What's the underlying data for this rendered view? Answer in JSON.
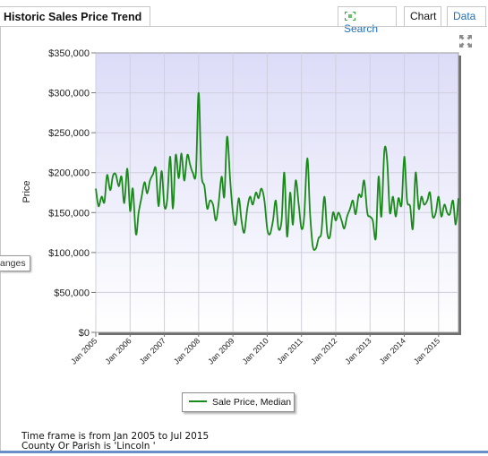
{
  "tabs": {
    "title": "Historic Sales Price Trend",
    "search_label": "Search",
    "chart_label": "Chart",
    "data_label": "Data"
  },
  "side_tab_label": "anges",
  "footer": {
    "line1": "Time frame is from Jan 2005 to Jul 2015",
    "line2": "County Or Parish is 'Lincoln '"
  },
  "colors": {
    "line": "#1a8a1a",
    "plot_top": "#dcdcf8",
    "plot_bottom": "#ffffff",
    "accent": "#1f6fb5"
  },
  "chart_data": {
    "type": "line",
    "ylabel": "Price",
    "ylim": [
      0,
      350000
    ],
    "yticks": [
      "$0",
      "$50,000",
      "$100,000",
      "$150,000",
      "$200,000",
      "$250,000",
      "$300,000",
      "$350,000"
    ],
    "xlim": [
      2005.0,
      2015.58
    ],
    "xticks": [
      "Jan 2005",
      "Jan 2006",
      "Jan 2007",
      "Jan 2008",
      "Jan 2009",
      "Jan 2010",
      "Jan 2011",
      "Jan 2012",
      "Jan 2013",
      "Jan 2014",
      "Jan 2015"
    ],
    "grid": true,
    "legend_position": "bottom-center",
    "series": [
      {
        "name": "Sale Price, Median",
        "points": [
          [
            2005.0,
            180000
          ],
          [
            2005.08,
            158000
          ],
          [
            2005.17,
            170000
          ],
          [
            2005.25,
            163000
          ],
          [
            2005.33,
            197000
          ],
          [
            2005.42,
            178000
          ],
          [
            2005.5,
            196000
          ],
          [
            2005.58,
            198000
          ],
          [
            2005.67,
            183000
          ],
          [
            2005.75,
            195000
          ],
          [
            2005.83,
            162000
          ],
          [
            2005.92,
            205000
          ],
          [
            2006.0,
            152000
          ],
          [
            2006.08,
            180000
          ],
          [
            2006.17,
            123000
          ],
          [
            2006.25,
            150000
          ],
          [
            2006.33,
            168000
          ],
          [
            2006.42,
            188000
          ],
          [
            2006.5,
            174000
          ],
          [
            2006.58,
            190000
          ],
          [
            2006.67,
            198000
          ],
          [
            2006.75,
            205000
          ],
          [
            2006.83,
            158000
          ],
          [
            2006.92,
            202000
          ],
          [
            2007.0,
            158000
          ],
          [
            2007.08,
            165000
          ],
          [
            2007.17,
            220000
          ],
          [
            2007.25,
            155000
          ],
          [
            2007.33,
            222000
          ],
          [
            2007.42,
            193000
          ],
          [
            2007.5,
            224000
          ],
          [
            2007.58,
            190000
          ],
          [
            2007.67,
            222000
          ],
          [
            2007.75,
            210000
          ],
          [
            2007.83,
            200000
          ],
          [
            2007.92,
            200000
          ],
          [
            2008.0,
            300000
          ],
          [
            2008.08,
            200000
          ],
          [
            2008.17,
            183000
          ],
          [
            2008.25,
            155000
          ],
          [
            2008.33,
            165000
          ],
          [
            2008.42,
            160000
          ],
          [
            2008.5,
            140000
          ],
          [
            2008.58,
            160000
          ],
          [
            2008.67,
            195000
          ],
          [
            2008.75,
            170000
          ],
          [
            2008.83,
            245000
          ],
          [
            2008.92,
            190000
          ],
          [
            2009.0,
            150000
          ],
          [
            2009.08,
            135000
          ],
          [
            2009.17,
            168000
          ],
          [
            2009.25,
            140000
          ],
          [
            2009.33,
            125000
          ],
          [
            2009.42,
            155000
          ],
          [
            2009.5,
            170000
          ],
          [
            2009.58,
            160000
          ],
          [
            2009.67,
            175000
          ],
          [
            2009.75,
            168000
          ],
          [
            2009.83,
            180000
          ],
          [
            2009.92,
            165000
          ],
          [
            2010.0,
            130000
          ],
          [
            2010.08,
            123000
          ],
          [
            2010.17,
            140000
          ],
          [
            2010.25,
            165000
          ],
          [
            2010.33,
            130000
          ],
          [
            2010.42,
            140000
          ],
          [
            2010.5,
            200000
          ],
          [
            2010.58,
            120000
          ],
          [
            2010.67,
            175000
          ],
          [
            2010.75,
            135000
          ],
          [
            2010.83,
            190000
          ],
          [
            2010.92,
            160000
          ],
          [
            2011.0,
            130000
          ],
          [
            2011.08,
            145000
          ],
          [
            2011.17,
            218000
          ],
          [
            2011.25,
            150000
          ],
          [
            2011.33,
            108000
          ],
          [
            2011.42,
            105000
          ],
          [
            2011.5,
            118000
          ],
          [
            2011.58,
            125000
          ],
          [
            2011.67,
            170000
          ],
          [
            2011.75,
            125000
          ],
          [
            2011.83,
            120000
          ],
          [
            2011.92,
            150000
          ],
          [
            2012.0,
            140000
          ],
          [
            2012.08,
            150000
          ],
          [
            2012.17,
            140000
          ],
          [
            2012.25,
            130000
          ],
          [
            2012.33,
            145000
          ],
          [
            2012.42,
            155000
          ],
          [
            2012.5,
            165000
          ],
          [
            2012.58,
            148000
          ],
          [
            2012.67,
            172000
          ],
          [
            2012.75,
            170000
          ],
          [
            2012.83,
            190000
          ],
          [
            2012.92,
            150000
          ],
          [
            2013.0,
            145000
          ],
          [
            2013.08,
            140000
          ],
          [
            2013.17,
            118000
          ],
          [
            2013.25,
            195000
          ],
          [
            2013.33,
            145000
          ],
          [
            2013.42,
            228000
          ],
          [
            2013.5,
            215000
          ],
          [
            2013.58,
            150000
          ],
          [
            2013.67,
            170000
          ],
          [
            2013.75,
            145000
          ],
          [
            2013.83,
            168000
          ],
          [
            2013.92,
            160000
          ],
          [
            2014.0,
            220000
          ],
          [
            2014.08,
            165000
          ],
          [
            2014.17,
            158000
          ],
          [
            2014.25,
            130000
          ],
          [
            2014.33,
            200000
          ],
          [
            2014.42,
            155000
          ],
          [
            2014.5,
            170000
          ],
          [
            2014.58,
            160000
          ],
          [
            2014.67,
            165000
          ],
          [
            2014.75,
            175000
          ],
          [
            2014.83,
            145000
          ],
          [
            2014.92,
            150000
          ],
          [
            2015.0,
            170000
          ],
          [
            2015.08,
            145000
          ],
          [
            2015.17,
            160000
          ],
          [
            2015.25,
            150000
          ],
          [
            2015.33,
            148000
          ],
          [
            2015.42,
            165000
          ],
          [
            2015.5,
            135000
          ],
          [
            2015.58,
            168000
          ]
        ]
      }
    ]
  }
}
